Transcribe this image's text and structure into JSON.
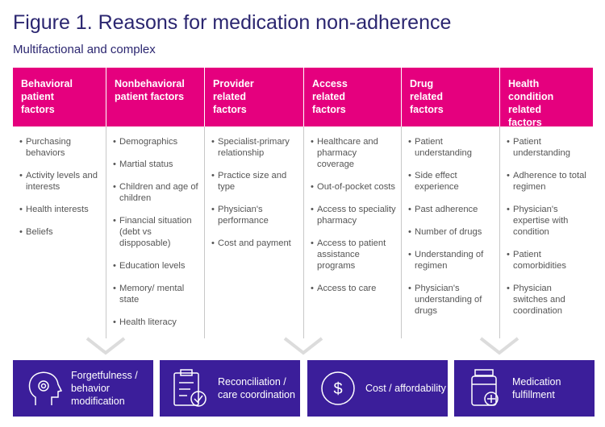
{
  "title": "Figure 1. Reasons for medication non-adherence",
  "subtitle": "Multifactional and complex",
  "columns": [
    {
      "header": "Behavioral patient factors",
      "items": [
        "Purchasing behaviors",
        "Activity levels and interests",
        "Health interests",
        "Beliefs"
      ]
    },
    {
      "header": "Nonbehavioral patient factors",
      "items": [
        "Demographics",
        "Martial status",
        "Children and age of children",
        "Financial situation (debt vs dispposable)",
        "Education levels",
        "Memory/ mental state",
        "Health literacy"
      ]
    },
    {
      "header": "Provider related factors",
      "items": [
        "Specialist-primary relationship",
        "Practice size and type",
        "Physician's performance",
        "Cost and payment"
      ]
    },
    {
      "header": "Access related factors",
      "items": [
        "Healthcare and pharmacy coverage",
        "Out-of-pocket costs",
        "Access to speciality pharmacy",
        "Access to patient assistance programs",
        "Access to care"
      ]
    },
    {
      "header": "Drug related factors",
      "items": [
        "Patient understanding",
        "Side effect experience",
        "Past adherence",
        "Number of drugs",
        "Understanding of regimen",
        "Physician's understanding of drugs"
      ]
    },
    {
      "header": "Health condition related factors",
      "items": [
        "Patient understanding",
        "Adherence to total regimen",
        "Physician's expertise with condition",
        "Patient comorbidities",
        "Physician switches and coordination"
      ]
    }
  ],
  "outcomes": [
    "Forgetfulness / behavior modification",
    "Reconciliation / care coordination",
    "Cost / affordability",
    "Medication fulfillment"
  ]
}
